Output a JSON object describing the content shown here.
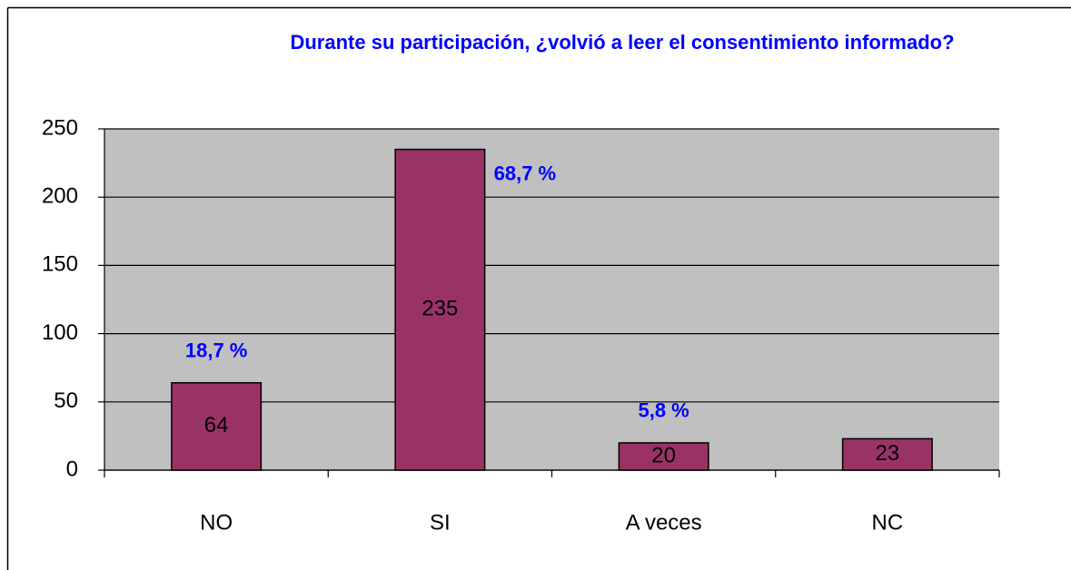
{
  "chart_data": {
    "type": "bar",
    "title": "Durante su participación, ¿volvió a leer el consentimiento informado?",
    "categories": [
      "NO",
      "SI",
      "A veces",
      "NC"
    ],
    "values": [
      64,
      235,
      20,
      23
    ],
    "percent_labels": [
      "18,7 %",
      "68,7 %",
      "5,8 %",
      null
    ],
    "color": "#993366",
    "ylim": [
      0,
      250
    ],
    "yticks": [
      0,
      50,
      100,
      150,
      200,
      250
    ],
    "grid": true
  }
}
